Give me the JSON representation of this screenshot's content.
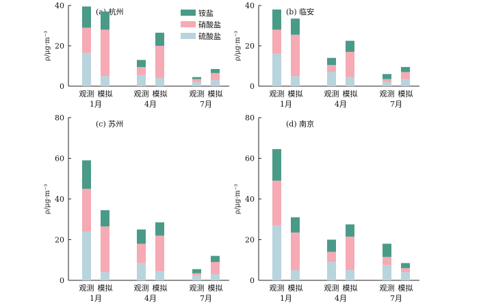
{
  "colors": {
    "ammonium": "#4a9a88",
    "nitrate": "#f5aab4",
    "sulfate": "#b8d4dd"
  },
  "legend": [
    {
      "key": "ammonium",
      "label": "铵盐"
    },
    {
      "key": "nitrate",
      "label": "硝酸盐"
    },
    {
      "key": "sulfate",
      "label": "硫酸盐"
    }
  ],
  "chart_data": [
    {
      "type": "bar",
      "stacked": true,
      "title": "(a) 杭州",
      "ylabel": "ρ/μg·m⁻³",
      "ylim": [
        0,
        40
      ],
      "yticks": [
        0,
        20,
        40
      ],
      "groups": [
        "1月",
        "4月",
        "7月"
      ],
      "categories": [
        "观测",
        "模拟",
        "观测",
        "模拟",
        "观测",
        "模拟"
      ],
      "series": [
        {
          "name": "硫酸盐",
          "values": [
            16.5,
            5,
            5.5,
            4,
            2,
            3
          ]
        },
        {
          "name": "硝酸盐",
          "values": [
            12.5,
            23,
            4,
            16,
            1.5,
            3.5
          ]
        },
        {
          "name": "铵盐",
          "values": [
            10.5,
            9,
            3.5,
            6.5,
            1,
            2
          ]
        }
      ]
    },
    {
      "type": "bar",
      "stacked": true,
      "title": "(b) 临安",
      "ylabel": "ρ/μg·m⁻³",
      "ylim": [
        0,
        40
      ],
      "yticks": [
        0,
        20,
        40
      ],
      "groups": [
        "1月",
        "4月",
        "7月"
      ],
      "categories": [
        "观测",
        "模拟",
        "观测",
        "模拟",
        "观测",
        "模拟"
      ],
      "series": [
        {
          "name": "硫酸盐",
          "values": [
            16,
            5,
            7,
            4.5,
            2,
            3.5
          ]
        },
        {
          "name": "硝酸盐",
          "values": [
            12,
            20.5,
            3.5,
            12.5,
            1.5,
            3.5
          ]
        },
        {
          "name": "铵盐",
          "values": [
            10,
            8,
            3.5,
            5.5,
            2.5,
            2.5
          ]
        }
      ]
    },
    {
      "type": "bar",
      "stacked": true,
      "title": "(c) 苏州",
      "ylabel": "ρ/μg·m⁻³",
      "ylim": [
        0,
        80
      ],
      "yticks": [
        0,
        20,
        40,
        60,
        80
      ],
      "groups": [
        "1月",
        "4月",
        "7月"
      ],
      "categories": [
        "观测",
        "模拟",
        "观测",
        "模拟",
        "观测",
        "模拟"
      ],
      "series": [
        {
          "name": "硫酸盐",
          "values": [
            24,
            4,
            8.5,
            4.5,
            2.5,
            3
          ]
        },
        {
          "name": "硝酸盐",
          "values": [
            21,
            22.5,
            9.5,
            17.5,
            1,
            6
          ]
        },
        {
          "name": "铵盐",
          "values": [
            14,
            8,
            7,
            6.5,
            2,
            3
          ]
        }
      ]
    },
    {
      "type": "bar",
      "stacked": true,
      "title": "(d) 南京",
      "ylabel": "ρ/μg·m⁻³",
      "ylim": [
        0,
        80
      ],
      "yticks": [
        0,
        20,
        40,
        60,
        80
      ],
      "groups": [
        "1月",
        "4月",
        "7月"
      ],
      "categories": [
        "观测",
        "模拟",
        "观测",
        "模拟",
        "观测",
        "模拟"
      ],
      "series": [
        {
          "name": "硫酸盐",
          "values": [
            27,
            5,
            9,
            5,
            7.5,
            4
          ]
        },
        {
          "name": "硝酸盐",
          "values": [
            22,
            18.5,
            5,
            16.5,
            4,
            2
          ]
        },
        {
          "name": "铵盐",
          "values": [
            15.5,
            7.5,
            6,
            6,
            6.5,
            2.5
          ]
        }
      ]
    }
  ]
}
